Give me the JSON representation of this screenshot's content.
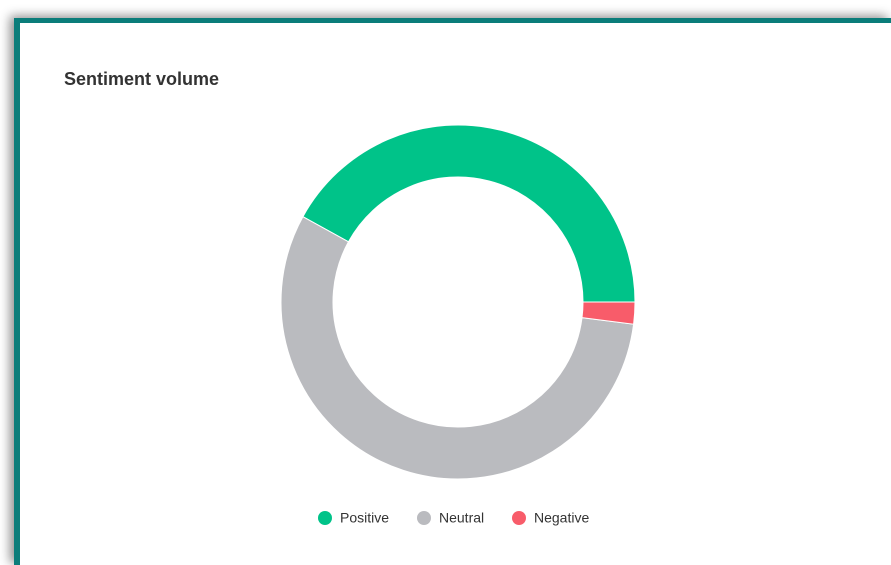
{
  "title": "Sentiment volume",
  "chart_data": {
    "type": "donut",
    "categories": [
      "Positive",
      "Neutral",
      "Negative"
    ],
    "values": [
      42,
      56,
      2
    ],
    "colors": [
      "#00c389",
      "#babbbf",
      "#f85c6a"
    ],
    "legend": "bottom"
  }
}
